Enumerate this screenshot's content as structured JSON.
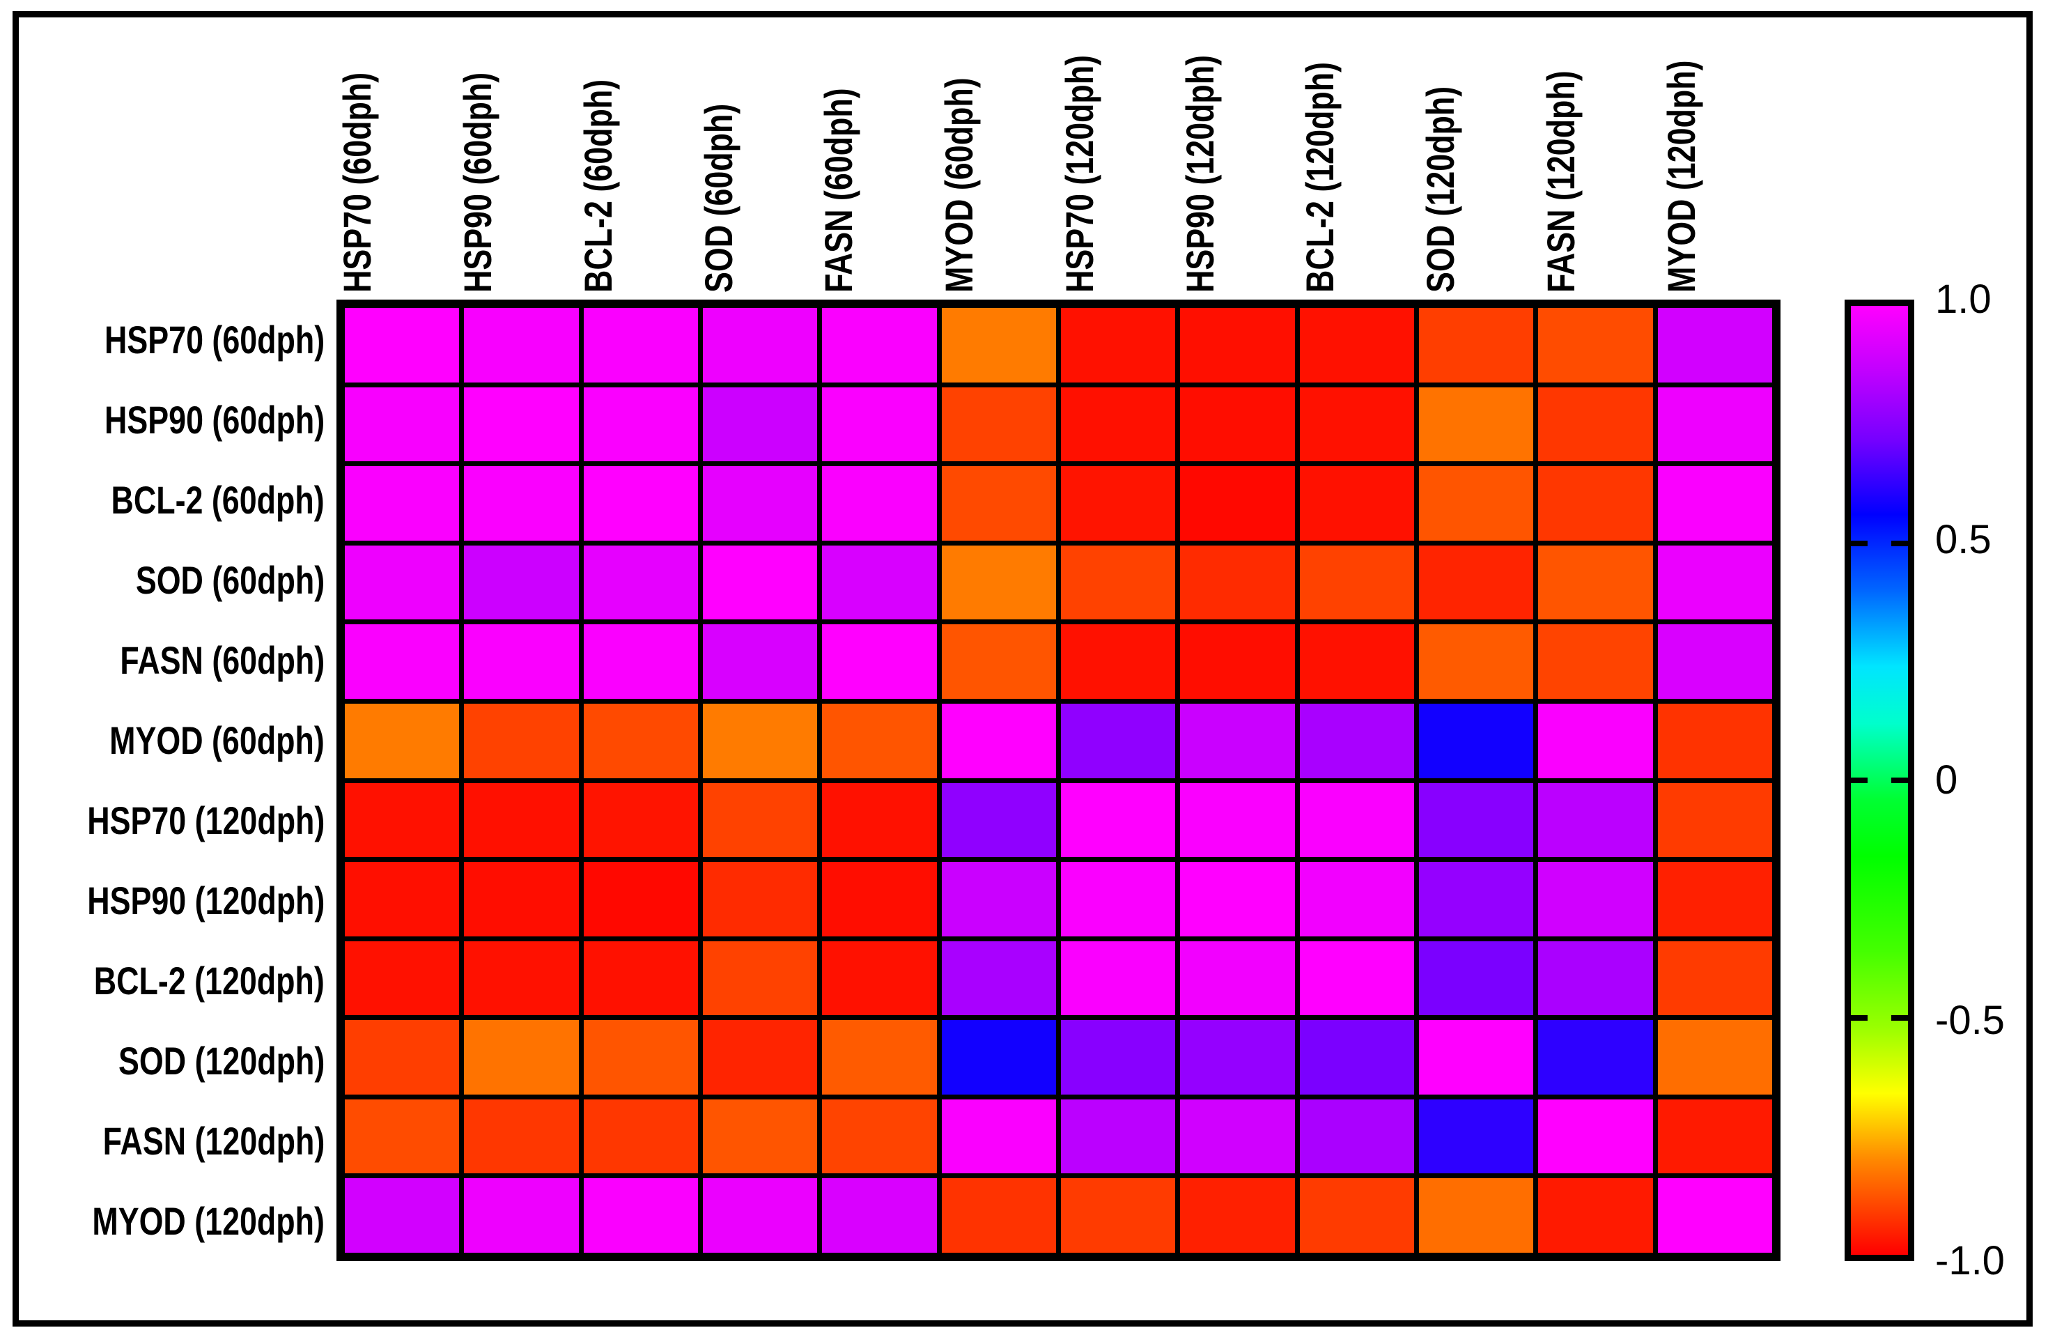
{
  "figure": {
    "background": "#ffffff",
    "frame_color": "#000000",
    "grid_line_color": "#000000"
  },
  "chart_data": {
    "type": "heatmap",
    "title": "",
    "legend_position": "right",
    "rows": [
      "HSP70 (60dph)",
      "HSP90 (60dph)",
      "BCL-2 (60dph)",
      "SOD (60dph)",
      "FASN (60dph)",
      "MYOD (60dph)",
      "HSP70 (120dph)",
      "HSP90 (120dph)",
      "BCL-2 (120dph)",
      "SOD (120dph)",
      "FASN (120dph)",
      "MYOD (120dph)"
    ],
    "cols": [
      "HSP70 (60dph)",
      "HSP90 (60dph)",
      "BCL-2 (60dph)",
      "SOD (60dph)",
      "FASN (60dph)",
      "MYOD (60dph)",
      "HSP70 (120dph)",
      "HSP90 (120dph)",
      "BCL-2 (120dph)",
      "SOD (120dph)",
      "FASN (120dph)",
      "MYOD (120dph)"
    ],
    "values": [
      [
        1.0,
        0.99,
        0.99,
        0.97,
        0.99,
        -0.84,
        -0.98,
        -0.98,
        -0.98,
        -0.92,
        -0.9,
        0.92
      ],
      [
        0.99,
        1.0,
        0.99,
        0.9,
        0.99,
        -0.91,
        -0.98,
        -0.98,
        -0.98,
        -0.85,
        -0.93,
        0.97
      ],
      [
        0.99,
        0.99,
        1.0,
        0.96,
        0.99,
        -0.9,
        -0.97,
        -0.99,
        -0.98,
        -0.89,
        -0.93,
        0.99
      ],
      [
        0.97,
        0.9,
        0.96,
        1.0,
        0.93,
        -0.84,
        -0.91,
        -0.94,
        -0.91,
        -0.95,
        -0.89,
        0.97
      ],
      [
        0.99,
        0.99,
        0.99,
        0.93,
        1.0,
        -0.89,
        -0.98,
        -0.98,
        -0.98,
        -0.88,
        -0.91,
        0.93
      ],
      [
        -0.84,
        -0.91,
        -0.9,
        -0.84,
        -0.89,
        1.0,
        0.8,
        0.9,
        0.85,
        0.58,
        0.99,
        -0.93
      ],
      [
        -0.98,
        -0.98,
        -0.97,
        -0.91,
        -0.98,
        0.8,
        1.0,
        0.99,
        0.99,
        0.79,
        0.88,
        -0.92
      ],
      [
        -0.98,
        -0.98,
        -0.99,
        -0.94,
        -0.98,
        0.9,
        0.99,
        1.0,
        0.98,
        0.82,
        0.92,
        -0.96
      ],
      [
        -0.98,
        -0.98,
        -0.98,
        -0.91,
        -0.98,
        0.85,
        0.99,
        0.98,
        1.0,
        0.77,
        0.85,
        -0.92
      ],
      [
        -0.92,
        -0.85,
        -0.89,
        -0.95,
        -0.88,
        0.58,
        0.79,
        0.82,
        0.77,
        1.0,
        0.63,
        -0.85
      ],
      [
        -0.9,
        -0.93,
        -0.93,
        -0.89,
        -0.91,
        0.99,
        0.88,
        0.92,
        0.85,
        0.63,
        1.0,
        -0.97
      ],
      [
        0.92,
        0.97,
        0.99,
        0.97,
        0.93,
        -0.93,
        -0.92,
        -0.96,
        -0.92,
        -0.85,
        -0.97,
        1.0
      ]
    ],
    "cell_colors": [
      [
        "#FF00FF",
        "#F800FF",
        "#FA00FF",
        "#EE00FF",
        "#FA00FF",
        "#FF7B00",
        "#FF1100",
        "#FF0F00",
        "#FF1100",
        "#FF3E00",
        "#FF4C00",
        "#D200FF"
      ],
      [
        "#F800FF",
        "#FF00FF",
        "#FA00FF",
        "#CC00FF",
        "#FA00FF",
        "#FF4200",
        "#FF1000",
        "#FF0D00",
        "#FF1100",
        "#FF7300",
        "#FF3700",
        "#EE00FF"
      ],
      [
        "#FA00FF",
        "#FA00FF",
        "#FF00FF",
        "#E600FF",
        "#FA00FF",
        "#FF4A00",
        "#FF1400",
        "#FF0800",
        "#FF1100",
        "#FF5500",
        "#FF3700",
        "#FA00FF"
      ],
      [
        "#EE00FF",
        "#CC00FF",
        "#E600FF",
        "#FF00FF",
        "#D800FF",
        "#FF7B00",
        "#FF4200",
        "#FF2B00",
        "#FF4200",
        "#FF2400",
        "#FF5500",
        "#EB00FF"
      ],
      [
        "#FA00FF",
        "#FA00FF",
        "#FA00FF",
        "#D800FF",
        "#FF00FF",
        "#FF5500",
        "#FF1100",
        "#FF0D00",
        "#FF1100",
        "#FF5B00",
        "#FF4400",
        "#D900FF"
      ],
      [
        "#FF7B00",
        "#FF4200",
        "#FF4A00",
        "#FF7B00",
        "#FF5500",
        "#FF00FF",
        "#9000FF",
        "#CA00FF",
        "#A900FF",
        "#1200FF",
        "#FA00FF",
        "#FF3300"
      ],
      [
        "#FF1100",
        "#FF1000",
        "#FF1400",
        "#FF4200",
        "#FF1100",
        "#9000FF",
        "#FF00FF",
        "#FA00FF",
        "#FA00FF",
        "#8800FF",
        "#BB00FF",
        "#FF3B00"
      ],
      [
        "#FF0F00",
        "#FF0D00",
        "#FF0800",
        "#FF2B00",
        "#FF0D00",
        "#CA00FF",
        "#FA00FF",
        "#FF00FF",
        "#F200FF",
        "#9500FF",
        "#D000FF",
        "#FF2000"
      ],
      [
        "#FF1100",
        "#FF1100",
        "#FF1100",
        "#FF4200",
        "#FF1100",
        "#A900FF",
        "#FA00FF",
        "#F200FF",
        "#FF00FF",
        "#7B00FF",
        "#AA00FF",
        "#FF3B00"
      ],
      [
        "#FF3E00",
        "#FF7300",
        "#FF5500",
        "#FF2400",
        "#FF5B00",
        "#1200FF",
        "#8800FF",
        "#9500FF",
        "#7B00FF",
        "#FF00FF",
        "#2E00FF",
        "#FF6E00"
      ],
      [
        "#FF4C00",
        "#FF3700",
        "#FF3700",
        "#FF5500",
        "#FF4400",
        "#FA00FF",
        "#BB00FF",
        "#D000FF",
        "#AA00FF",
        "#2E00FF",
        "#FF00FF",
        "#FF1A00"
      ],
      [
        "#D200FF",
        "#EE00FF",
        "#FA00FF",
        "#EB00FF",
        "#D900FF",
        "#FF3300",
        "#FF3B00",
        "#FF2000",
        "#FF3B00",
        "#FF6E00",
        "#FF1A00",
        "#FF00FF"
      ]
    ],
    "colorbar": {
      "min": -1.0,
      "max": 1.0,
      "tick_labels": [
        {
          "label": "1.0",
          "pos": 0.0
        },
        {
          "label": "0.5",
          "pos": 0.25
        },
        {
          "label": "0",
          "pos": 0.5
        },
        {
          "label": "-0.5",
          "pos": 0.75
        },
        {
          "label": "-1.0",
          "pos": 1.0
        }
      ],
      "tick_marks": [
        0.25,
        0.5,
        0.75
      ],
      "gradient_stops": [
        {
          "pos": 0.0,
          "color": "#FF00FF"
        },
        {
          "pos": 0.07,
          "color": "#C000FF"
        },
        {
          "pos": 0.14,
          "color": "#7700FF"
        },
        {
          "pos": 0.22,
          "color": "#0000FF"
        },
        {
          "pos": 0.3,
          "color": "#0066FF"
        },
        {
          "pos": 0.38,
          "color": "#00E5FF"
        },
        {
          "pos": 0.44,
          "color": "#00FFCC"
        },
        {
          "pos": 0.52,
          "color": "#00FF33"
        },
        {
          "pos": 0.58,
          "color": "#00FF00"
        },
        {
          "pos": 0.68,
          "color": "#44FF00"
        },
        {
          "pos": 0.76,
          "color": "#99FF00"
        },
        {
          "pos": 0.83,
          "color": "#FFFF00"
        },
        {
          "pos": 0.9,
          "color": "#FF8800"
        },
        {
          "pos": 1.0,
          "color": "#FF0000"
        }
      ]
    }
  }
}
